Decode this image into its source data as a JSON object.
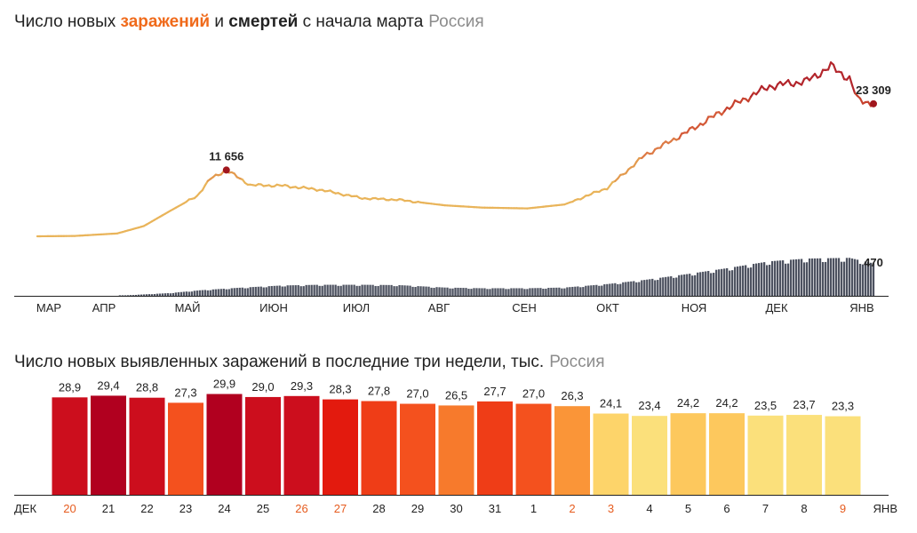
{
  "chart_data": [
    {
      "type": "line",
      "title": {
        "prefix": "Число новых ",
        "infections": "заражений",
        "middle": " и ",
        "deaths": "смертей",
        "suffix": " с начала марта",
        "region": "Россия"
      },
      "x_labels": [
        "МАР",
        "АПР",
        "МАЙ",
        "ИЮН",
        "ИЮЛ",
        "АВГ",
        "СЕН",
        "ОКТ",
        "НОЯ",
        "ДЕК",
        "ЯНВ"
      ],
      "series": [
        {
          "type": "line",
          "points": [
            {
              "x": "2020-03-01",
              "y": 0
            },
            {
              "x": "2020-03-15",
              "y": 60
            },
            {
              "x": "2020-03-31",
              "y": 500
            },
            {
              "x": "2020-04-10",
              "y": 1800
            },
            {
              "x": "2020-04-20",
              "y": 4500
            },
            {
              "x": "2020-04-30",
              "y": 7100
            },
            {
              "x": "2020-05-05",
              "y": 10100
            },
            {
              "x": "2020-05-11",
              "y": 11656
            },
            {
              "x": "2020-05-20",
              "y": 9000
            },
            {
              "x": "2020-06-01",
              "y": 8900
            },
            {
              "x": "2020-06-15",
              "y": 8200
            },
            {
              "x": "2020-07-01",
              "y": 6700
            },
            {
              "x": "2020-07-15",
              "y": 6400
            },
            {
              "x": "2020-08-01",
              "y": 5450
            },
            {
              "x": "2020-08-15",
              "y": 5050
            },
            {
              "x": "2020-09-01",
              "y": 4900
            },
            {
              "x": "2020-09-15",
              "y": 5600
            },
            {
              "x": "2020-10-01",
              "y": 8500
            },
            {
              "x": "2020-10-15",
              "y": 14200
            },
            {
              "x": "2020-11-01",
              "y": 18600
            },
            {
              "x": "2020-11-15",
              "y": 22500
            },
            {
              "x": "2020-12-01",
              "y": 26400
            },
            {
              "x": "2020-12-15",
              "y": 27300
            },
            {
              "x": "2020-12-24",
              "y": 29900
            },
            {
              "x": "2020-12-31",
              "y": 27700
            },
            {
              "x": "2021-01-03",
              "y": 24100
            },
            {
              "x": "2021-01-09",
              "y": 23309
            }
          ],
          "annotations": [
            {
              "x": "2020-05-11",
              "y": 11656,
              "label": "11 656"
            },
            {
              "x": "2021-01-09",
              "y": 23309,
              "label": "23 309"
            }
          ]
        },
        {
          "type": "bar",
          "points": [
            {
              "x": "2020-04-01",
              "y": 3
            },
            {
              "x": "2020-04-20",
              "y": 40
            },
            {
              "x": "2020-05-01",
              "y": 80
            },
            {
              "x": "2020-05-15",
              "y": 115
            },
            {
              "x": "2020-06-01",
              "y": 150
            },
            {
              "x": "2020-06-15",
              "y": 160
            },
            {
              "x": "2020-07-01",
              "y": 160
            },
            {
              "x": "2020-07-15",
              "y": 155
            },
            {
              "x": "2020-08-01",
              "y": 120
            },
            {
              "x": "2020-08-15",
              "y": 110
            },
            {
              "x": "2020-09-01",
              "y": 110
            },
            {
              "x": "2020-09-15",
              "y": 120
            },
            {
              "x": "2020-10-01",
              "y": 170
            },
            {
              "x": "2020-10-15",
              "y": 230
            },
            {
              "x": "2020-11-01",
              "y": 320
            },
            {
              "x": "2020-11-15",
              "y": 400
            },
            {
              "x": "2020-12-01",
              "y": 500
            },
            {
              "x": "2020-12-15",
              "y": 540
            },
            {
              "x": "2020-12-31",
              "y": 550
            },
            {
              "x": "2021-01-09",
              "y": 470
            }
          ],
          "annotations": [
            {
              "x": "2021-01-09",
              "y": 470,
              "label": "470"
            }
          ]
        }
      ]
    },
    {
      "type": "bar",
      "title": {
        "main": "Число новых выявленных заражений в последние три недели, тыс.",
        "region": "Россия"
      },
      "start_label": "ДЕК",
      "end_label": "ЯНВ",
      "categories": [
        "20",
        "21",
        "22",
        "23",
        "24",
        "25",
        "26",
        "27",
        "28",
        "29",
        "30",
        "31",
        "1",
        "2",
        "3",
        "4",
        "5",
        "6",
        "7",
        "8",
        "9"
      ],
      "values": [
        28.9,
        29.4,
        28.8,
        27.3,
        29.9,
        29.0,
        29.3,
        28.3,
        27.8,
        27.0,
        26.5,
        27.7,
        27.0,
        26.3,
        24.1,
        23.4,
        24.2,
        24.2,
        23.5,
        23.7,
        23.3
      ],
      "value_labels": [
        "28,9",
        "29,4",
        "28,8",
        "27,3",
        "29,9",
        "29,0",
        "29,3",
        "28,3",
        "27,8",
        "27,0",
        "26,5",
        "27,7",
        "27,0",
        "26,3",
        "24,1",
        "23,4",
        "24,2",
        "24,2",
        "23,5",
        "23,7",
        "23,3"
      ],
      "colors": [
        "#cc0e1d",
        "#b1001f",
        "#cc0e1d",
        "#f4511e",
        "#b1001f",
        "#cc0e1d",
        "#cc0e1d",
        "#e31a0e",
        "#ef3d17",
        "#f4511e",
        "#f77a2c",
        "#ef3d17",
        "#f4511e",
        "#fa9538",
        "#fdd46a",
        "#fbe07b",
        "#fdc85d",
        "#fdc85d",
        "#fbe07b",
        "#fbe07b",
        "#fbe07b"
      ],
      "highlight_label_color": "#e65c1f",
      "highlighted_categories": [
        "20",
        "26",
        "27",
        "2",
        "3",
        "9"
      ],
      "ylim": [
        0,
        30
      ]
    }
  ]
}
